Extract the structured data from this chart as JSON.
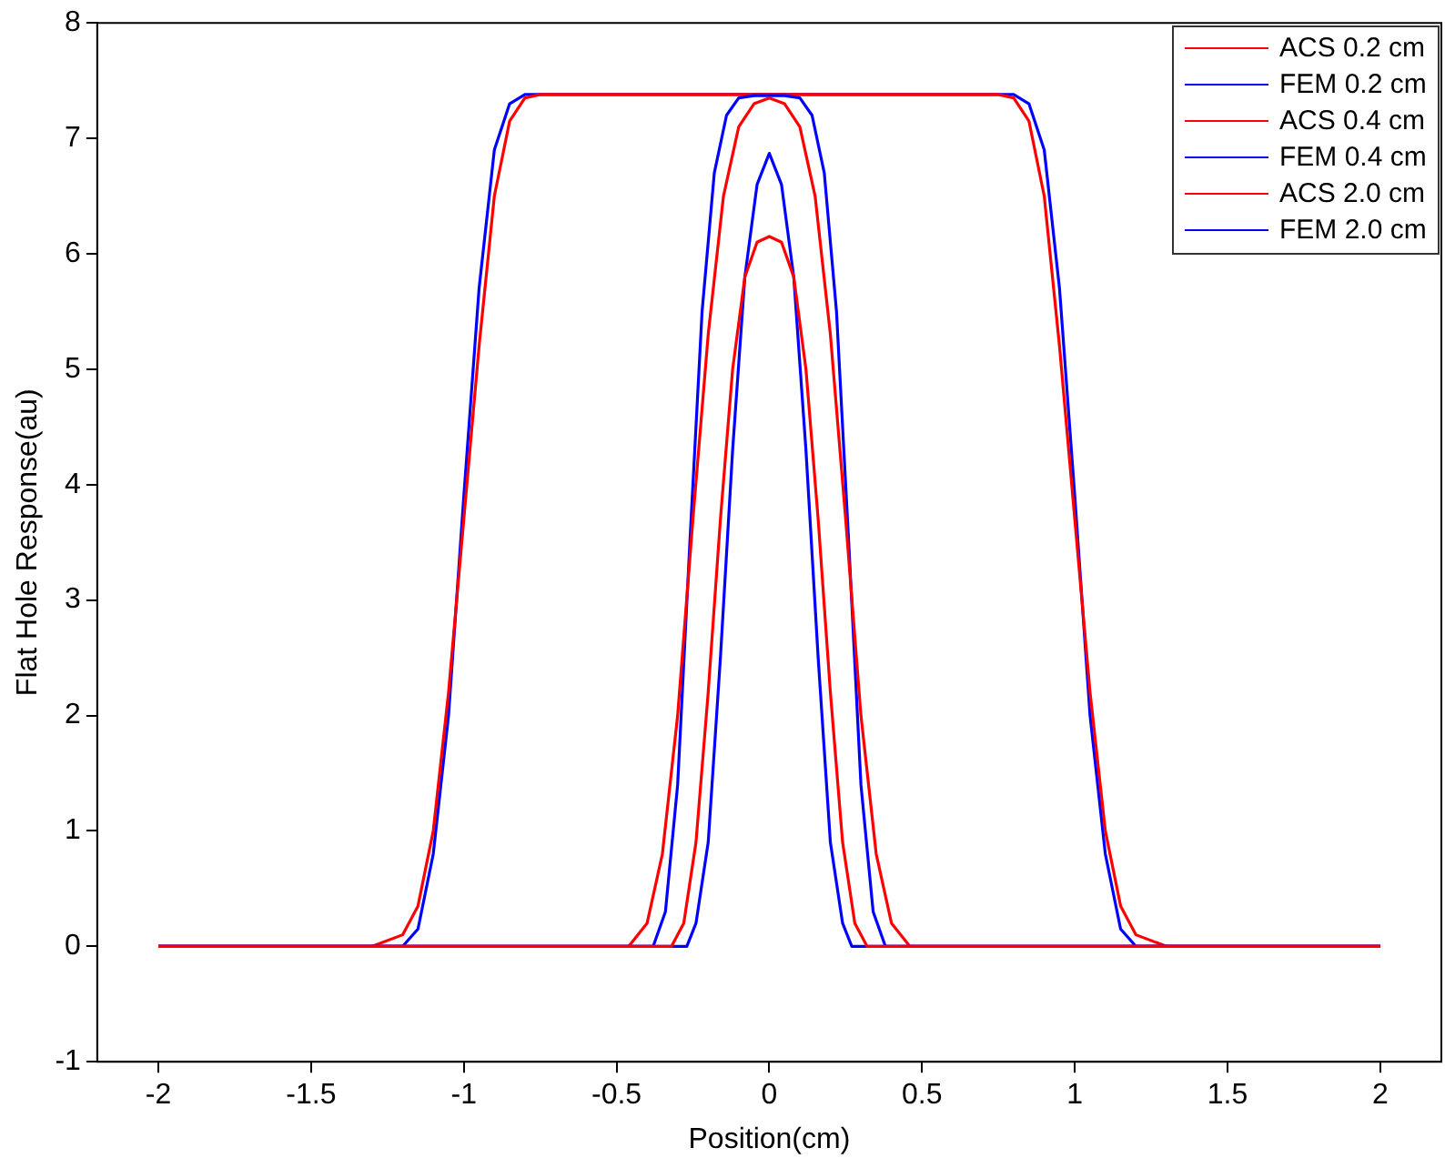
{
  "chart_data": {
    "type": "line",
    "xlabel": "Position(cm)",
    "ylabel": "Flat Hole Response(au)",
    "xlim": [
      -2.2,
      2.2
    ],
    "ylim": [
      -1,
      8
    ],
    "xticks": [
      -2,
      -1.5,
      -1,
      -0.5,
      0,
      0.5,
      1,
      1.5,
      2
    ],
    "yticks": [
      -1,
      0,
      1,
      2,
      3,
      4,
      5,
      6,
      7,
      8
    ],
    "grid": false,
    "legend": "top right",
    "marker": "none",
    "line_style": "solid",
    "series": [
      {
        "name": "ACS 0.2 cm",
        "color": "#ff0000",
        "x": [
          -2,
          -0.32,
          -0.28,
          -0.24,
          -0.2,
          -0.16,
          -0.12,
          -0.08,
          -0.04,
          0,
          0.04,
          0.08,
          0.12,
          0.16,
          0.2,
          0.24,
          0.28,
          0.32,
          2
        ],
        "values": [
          0,
          0,
          0.2,
          0.9,
          2.2,
          3.7,
          5.0,
          5.8,
          6.1,
          6.15,
          6.1,
          5.8,
          5.0,
          3.7,
          2.2,
          0.9,
          0.2,
          0,
          0
        ]
      },
      {
        "name": "FEM 0.2 cm",
        "color": "#0000ff",
        "x": [
          -2,
          -0.27,
          -0.24,
          -0.2,
          -0.16,
          -0.12,
          -0.08,
          -0.04,
          0,
          0.04,
          0.08,
          0.12,
          0.16,
          0.2,
          0.24,
          0.27,
          2
        ],
        "values": [
          0,
          0,
          0.2,
          0.9,
          2.5,
          4.3,
          5.8,
          6.6,
          6.87,
          6.6,
          5.8,
          4.3,
          2.5,
          0.9,
          0.2,
          0,
          0
        ]
      },
      {
        "name": "ACS 0.4 cm",
        "color": "#ff0000",
        "x": [
          -2,
          -0.46,
          -0.4,
          -0.35,
          -0.3,
          -0.25,
          -0.2,
          -0.15,
          -0.1,
          -0.05,
          0,
          0.05,
          0.1,
          0.15,
          0.2,
          0.25,
          0.3,
          0.35,
          0.4,
          0.46,
          2
        ],
        "values": [
          0,
          0,
          0.2,
          0.8,
          2.0,
          3.7,
          5.3,
          6.5,
          7.1,
          7.3,
          7.35,
          7.3,
          7.1,
          6.5,
          5.3,
          3.7,
          2.0,
          0.8,
          0.2,
          0,
          0
        ]
      },
      {
        "name": "FEM 0.4 cm",
        "color": "#0000ff",
        "x": [
          -2,
          -0.38,
          -0.34,
          -0.3,
          -0.26,
          -0.22,
          -0.18,
          -0.14,
          -0.1,
          -0.05,
          0,
          0.05,
          0.1,
          0.14,
          0.18,
          0.22,
          0.26,
          0.3,
          0.34,
          0.38,
          2
        ],
        "values": [
          0,
          0,
          0.3,
          1.4,
          3.5,
          5.5,
          6.7,
          7.2,
          7.35,
          7.37,
          7.37,
          7.37,
          7.35,
          7.2,
          6.7,
          5.5,
          3.5,
          1.4,
          0.3,
          0,
          0
        ]
      },
      {
        "name": "ACS 2.0 cm",
        "color": "#ff0000",
        "x": [
          -2,
          -1.3,
          -1.2,
          -1.15,
          -1.1,
          -1.05,
          -1.0,
          -0.95,
          -0.9,
          -0.85,
          -0.8,
          -0.75,
          0.75,
          0.8,
          0.85,
          0.9,
          0.95,
          1.0,
          1.05,
          1.1,
          1.15,
          1.2,
          1.3,
          2
        ],
        "values": [
          0,
          0,
          0.1,
          0.35,
          1.0,
          2.2,
          3.7,
          5.2,
          6.5,
          7.15,
          7.35,
          7.38,
          7.38,
          7.35,
          7.15,
          6.5,
          5.2,
          3.7,
          2.2,
          1.0,
          0.35,
          0.1,
          0,
          0
        ]
      },
      {
        "name": "FEM 2.0 cm",
        "color": "#0000ff",
        "x": [
          -2,
          -1.2,
          -1.15,
          -1.1,
          -1.05,
          -1.0,
          -0.95,
          -0.9,
          -0.85,
          -0.8,
          0.8,
          0.85,
          0.9,
          0.95,
          1.0,
          1.05,
          1.1,
          1.15,
          1.2,
          2
        ],
        "values": [
          0,
          0,
          0.15,
          0.8,
          2.0,
          3.9,
          5.7,
          6.9,
          7.3,
          7.38,
          7.38,
          7.3,
          6.9,
          5.7,
          3.9,
          2.0,
          0.8,
          0.15,
          0,
          0
        ]
      }
    ]
  }
}
